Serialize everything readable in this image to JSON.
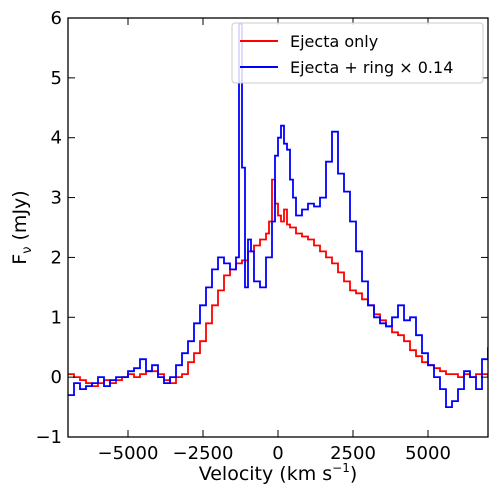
{
  "chart_data": {
    "type": "line",
    "step": true,
    "xlabel": "Velocity (km s",
    "xlabel_sup": "−1",
    "xlabel_tail": ")",
    "ylabel": "F",
    "ylabel_sub": "ν",
    "ylabel_tail": " (mJy)",
    "xlim": [
      -7000,
      7000
    ],
    "ylim": [
      -1,
      6
    ],
    "xticks": [
      -5000,
      -2500,
      0,
      2500,
      5000
    ],
    "xtick_labels": [
      "−5000",
      "−2500",
      "0",
      "2500",
      "5000"
    ],
    "yticks": [
      -1,
      0,
      1,
      2,
      3,
      4,
      5,
      6
    ],
    "ytick_labels": [
      "−1",
      "0",
      "1",
      "2",
      "3",
      "4",
      "5",
      "6"
    ],
    "grid": false,
    "legend_position": "top-right",
    "series": [
      {
        "name": "Ejecta only",
        "color": "#ff0000",
        "x": [
          -7000,
          -6800,
          -6600,
          -6400,
          -6200,
          -6000,
          -5800,
          -5600,
          -5400,
          -5200,
          -5000,
          -4800,
          -4600,
          -4400,
          -4200,
          -4000,
          -3800,
          -3600,
          -3400,
          -3200,
          -3000,
          -2800,
          -2600,
          -2400,
          -2200,
          -2000,
          -1800,
          -1600,
          -1400,
          -1200,
          -1000,
          -800,
          -600,
          -400,
          -300,
          -200,
          -100,
          0,
          100,
          200,
          300,
          400,
          600,
          800,
          1000,
          1200,
          1400,
          1600,
          1800,
          2000,
          2200,
          2400,
          2600,
          2800,
          3000,
          3200,
          3400,
          3600,
          3800,
          4000,
          4200,
          4400,
          4600,
          4800,
          5000,
          5200,
          5400,
          5600,
          5800,
          6000,
          6200,
          6400,
          6600,
          6800,
          7000
        ],
        "y": [
          0.05,
          0.0,
          -0.05,
          -0.1,
          -0.15,
          -0.1,
          -0.05,
          -0.1,
          -0.05,
          0.0,
          0.05,
          0.0,
          0.05,
          0.1,
          0.1,
          0.05,
          -0.05,
          -0.1,
          0.0,
          0.05,
          0.25,
          0.4,
          0.6,
          0.9,
          1.2,
          1.45,
          1.7,
          1.8,
          1.9,
          1.95,
          2.1,
          2.2,
          2.3,
          2.4,
          2.6,
          3.3,
          2.9,
          2.7,
          2.6,
          2.8,
          2.55,
          2.5,
          2.4,
          2.35,
          2.3,
          2.2,
          2.1,
          2.0,
          1.9,
          1.75,
          1.6,
          1.45,
          1.4,
          1.3,
          1.2,
          1.05,
          0.95,
          0.85,
          0.75,
          0.7,
          0.6,
          0.45,
          0.35,
          0.25,
          0.2,
          0.15,
          0.1,
          0.05,
          0.05,
          0.0,
          0.05,
          0.0,
          0.05,
          0.05,
          0.0
        ]
      },
      {
        "name": "Ejecta + ring × 0.14",
        "color": "#0000ff",
        "x": [
          -7000,
          -6800,
          -6600,
          -6400,
          -6200,
          -6000,
          -5800,
          -5600,
          -5400,
          -5200,
          -5000,
          -4800,
          -4600,
          -4400,
          -4200,
          -4000,
          -3800,
          -3600,
          -3400,
          -3200,
          -3000,
          -2800,
          -2600,
          -2400,
          -2200,
          -2000,
          -1800,
          -1600,
          -1400,
          -1300,
          -1200,
          -1100,
          -1000,
          -900,
          -800,
          -600,
          -400,
          -200,
          -100,
          0,
          100,
          200,
          300,
          400,
          500,
          600,
          800,
          1000,
          1200,
          1400,
          1600,
          1800,
          2000,
          2200,
          2400,
          2600,
          2800,
          3000,
          3200,
          3400,
          3600,
          3800,
          4000,
          4200,
          4400,
          4600,
          4800,
          5000,
          5200,
          5400,
          5600,
          5800,
          6000,
          6200,
          6400,
          6600,
          6800,
          7000
        ],
        "y": [
          -0.3,
          -0.1,
          -0.2,
          -0.15,
          -0.1,
          0.0,
          -0.15,
          -0.05,
          0.0,
          0.0,
          0.1,
          0.15,
          0.3,
          0.1,
          0.2,
          0.0,
          -0.1,
          0.0,
          0.2,
          0.4,
          0.6,
          0.9,
          1.2,
          1.5,
          1.8,
          2.0,
          1.9,
          1.8,
          2.0,
          5.9,
          3.5,
          1.5,
          2.3,
          2.1,
          1.6,
          1.5,
          2.0,
          2.6,
          3.7,
          4.0,
          4.2,
          3.9,
          3.8,
          3.3,
          3.0,
          2.7,
          2.8,
          2.9,
          2.85,
          3.0,
          3.6,
          4.1,
          3.4,
          3.1,
          2.6,
          2.1,
          1.6,
          1.2,
          1.0,
          0.9,
          0.85,
          1.0,
          1.2,
          0.95,
          1.0,
          0.7,
          0.4,
          0.2,
          0.0,
          -0.2,
          -0.5,
          -0.4,
          -0.2,
          0.1,
          0.0,
          -0.2,
          0.3,
          0.5
        ]
      }
    ]
  }
}
